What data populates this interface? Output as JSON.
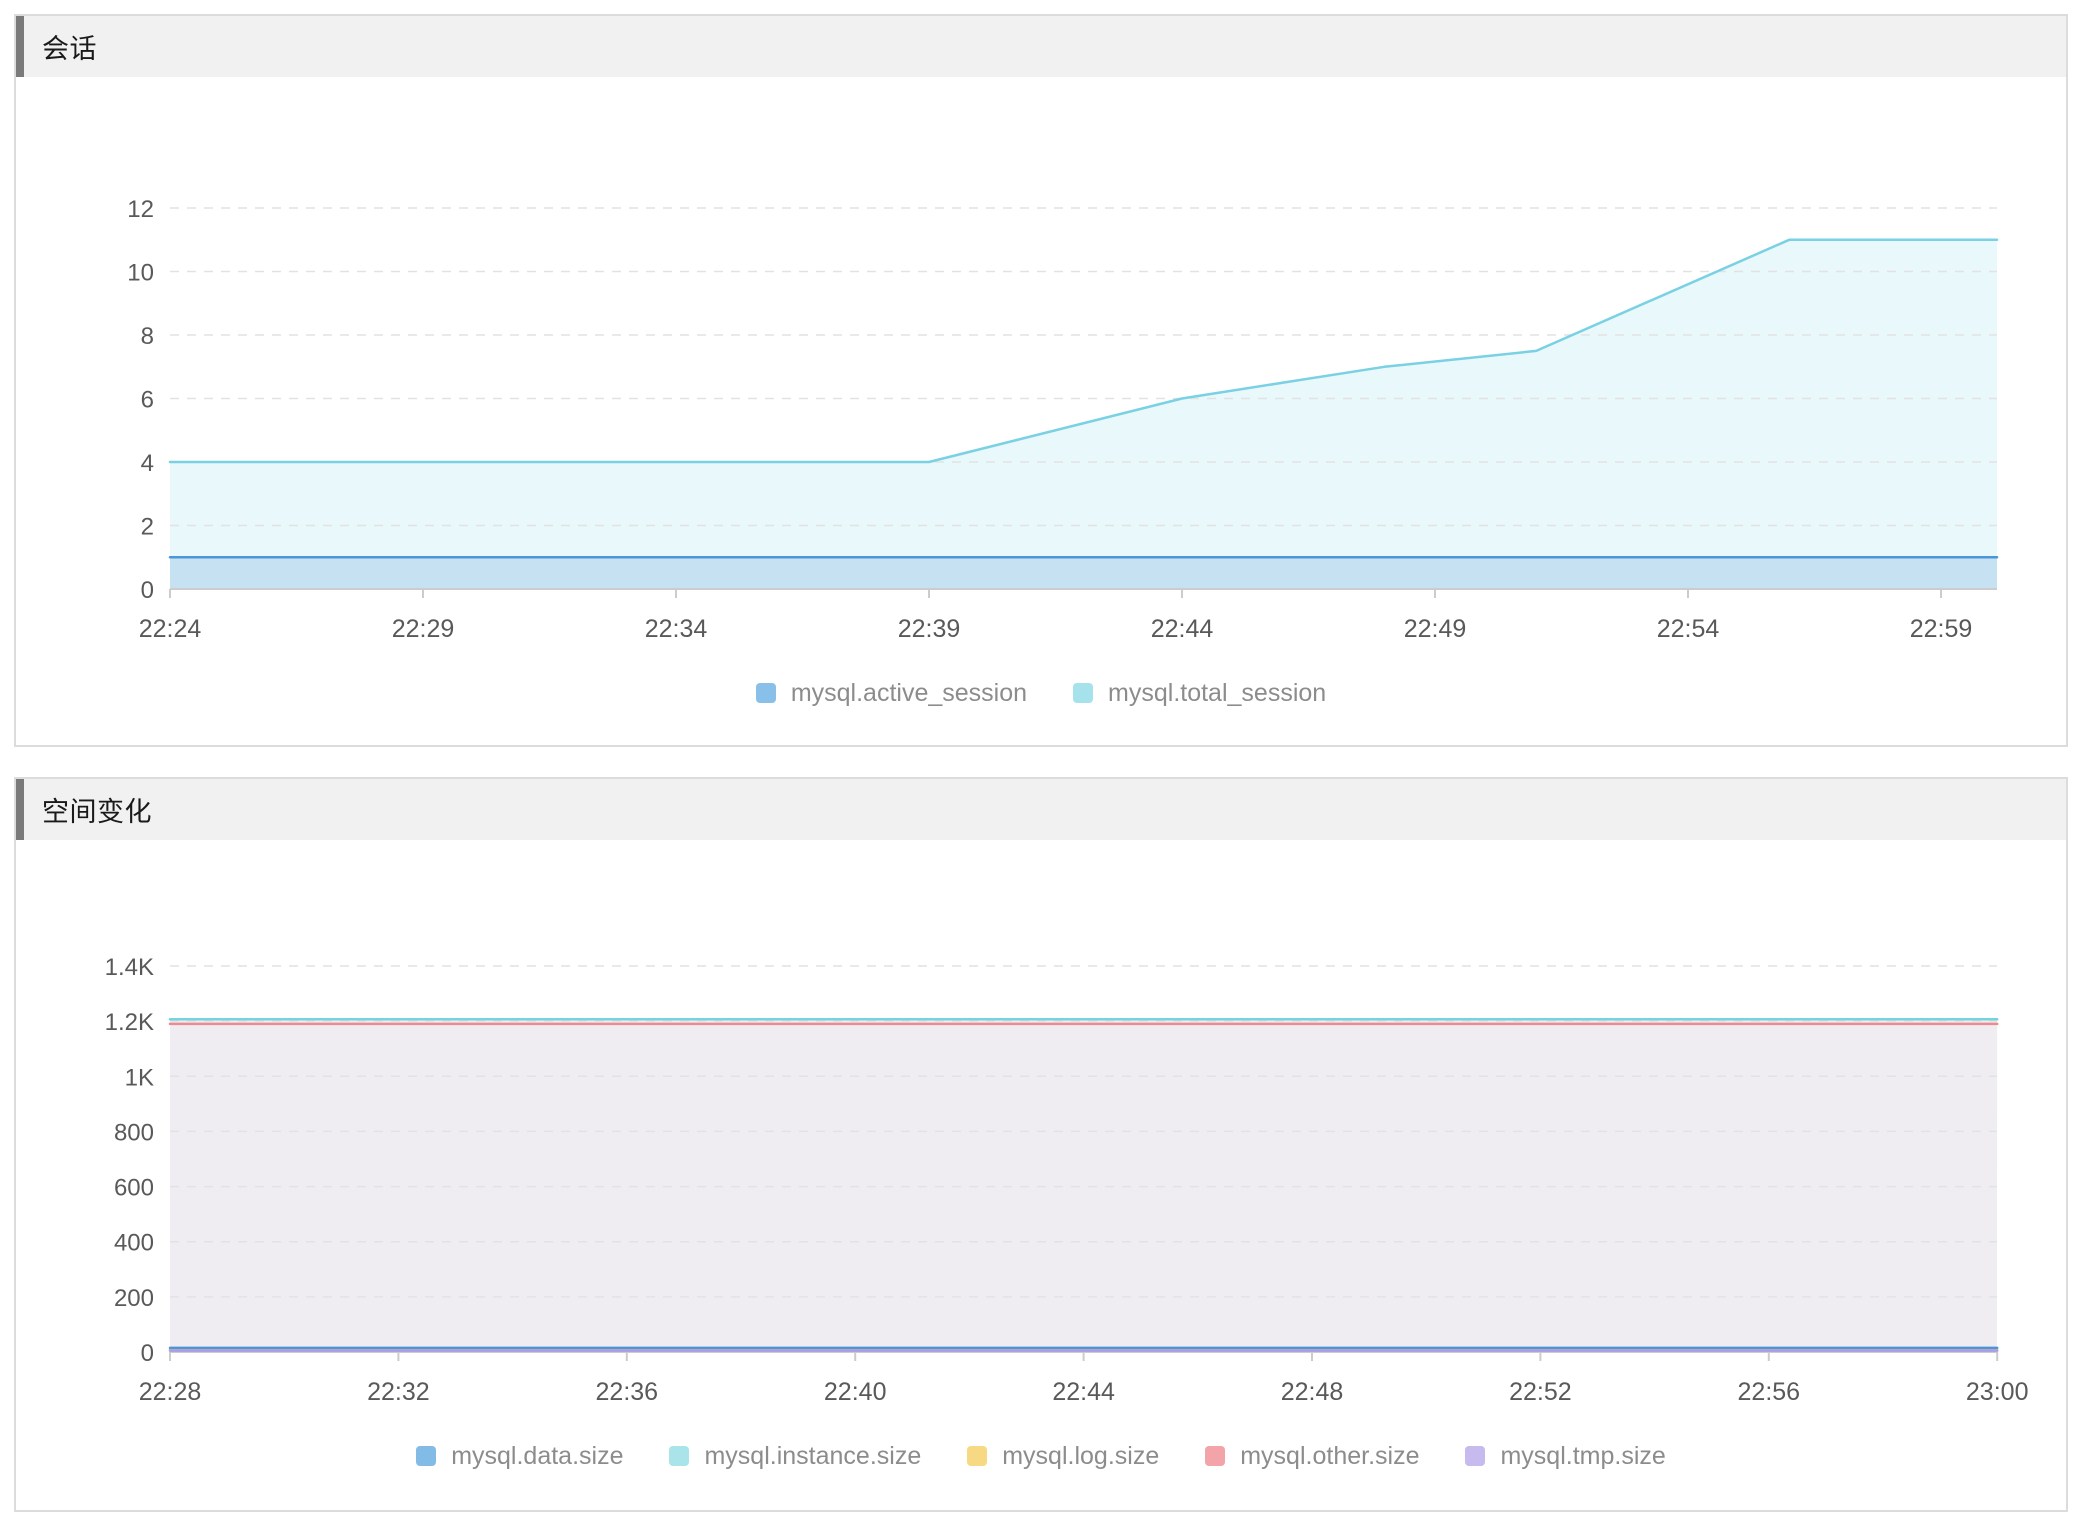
{
  "page": {
    "background": "#ffffff"
  },
  "chart_data": [
    {
      "type": "area",
      "title": "会话",
      "x_tick_labels": [
        "22:24",
        "22:29",
        "22:34",
        "22:39",
        "22:44",
        "22:49",
        "22:54",
        "22:59"
      ],
      "x_range": [
        "22:24",
        "23:00"
      ],
      "y_tick_labels": [
        "0",
        "2",
        "4",
        "6",
        "8",
        "10",
        "12"
      ],
      "y_tick_values": [
        0,
        2,
        4,
        6,
        8,
        10,
        12
      ],
      "ylim": [
        0,
        13
      ],
      "grid": "horizontal-dashed",
      "legend_position": "bottom",
      "axis_color": "#cccccc",
      "gridline_color": "#e2e2e2",
      "label_color": "#595959",
      "draw_order": [
        1,
        0
      ],
      "series": [
        {
          "name": "mysql.active_session",
          "color": "#4b96d8",
          "swatch": "#89c0e9",
          "fill": "rgba(75,150,216,0.22)",
          "points": [
            [
              "22:24",
              1
            ],
            [
              "23:00",
              1
            ]
          ]
        },
        {
          "name": "mysql.total_session",
          "color": "#79d1e3",
          "swatch": "#a5e2ec",
          "fill": "rgba(121,209,227,0.16)",
          "points": [
            [
              "22:24",
              4
            ],
            [
              "22:39",
              4
            ],
            [
              "22:44",
              6
            ],
            [
              "22:46",
              6.5
            ],
            [
              "22:48",
              7
            ],
            [
              "22:51",
              7.5
            ],
            [
              "22:56",
              11
            ],
            [
              "23:00",
              11
            ]
          ]
        }
      ]
    },
    {
      "type": "area",
      "title": "空间变化",
      "x_tick_labels": [
        "22:28",
        "22:32",
        "22:36",
        "22:40",
        "22:44",
        "22:48",
        "22:52",
        "22:56",
        "23:00"
      ],
      "x_range": [
        "22:28",
        "23:00"
      ],
      "y_tick_labels": [
        "0",
        "200",
        "400",
        "600",
        "800",
        "1K",
        "1.2K",
        "1.4K"
      ],
      "y_tick_values": [
        0,
        200,
        400,
        600,
        800,
        1000,
        1200,
        1400
      ],
      "ylim": [
        0,
        1450
      ],
      "grid": "horizontal-dashed",
      "legend_position": "bottom",
      "axis_color": "#cccccc",
      "gridline_color": "#e2e2e2",
      "label_color": "#595959",
      "draw_order": [
        1,
        3,
        2,
        0,
        4
      ],
      "series": [
        {
          "name": "mysql.data.size",
          "color": "#4b96d8",
          "swatch": "#83bbe7",
          "fill": "rgba(75,150,216,0.18)",
          "points": [
            [
              "22:28",
              15
            ],
            [
              "23:00",
              15
            ]
          ]
        },
        {
          "name": "mysql.instance.size",
          "color": "#74d4de",
          "swatch": "#a8e4e9",
          "fill": "#efedf2",
          "points": [
            [
              "22:28",
              1207
            ],
            [
              "23:00",
              1207
            ]
          ]
        },
        {
          "name": "mysql.log.size",
          "color": "#f0c96a",
          "swatch": "#f6d982",
          "fill": "none",
          "points": [
            [
              "22:28",
              8
            ],
            [
              "23:00",
              8
            ]
          ]
        },
        {
          "name": "mysql.other.size",
          "color": "#ec8a90",
          "swatch": "#f2a4a8",
          "fill": "none",
          "points": [
            [
              "22:28",
              1190
            ],
            [
              "23:00",
              1190
            ]
          ]
        },
        {
          "name": "mysql.tmp.size",
          "color": "#a79ce5",
          "swatch": "#c7baef",
          "fill": "rgba(167,156,229,0.3)",
          "points": [
            [
              "22:28",
              5
            ],
            [
              "23:00",
              5
            ]
          ]
        }
      ]
    }
  ]
}
